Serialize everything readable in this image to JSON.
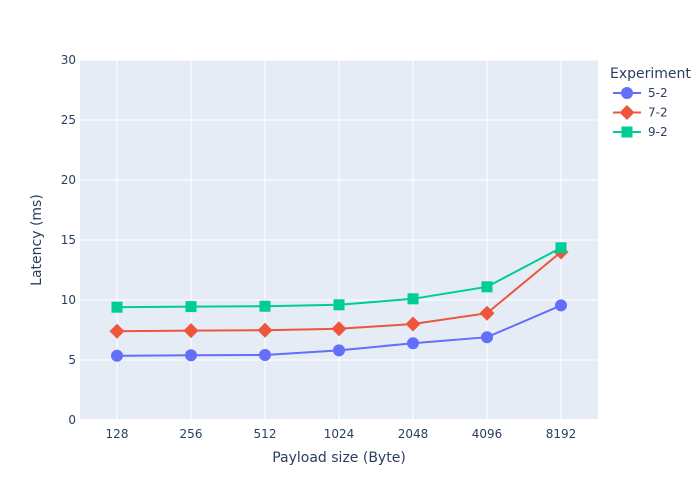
{
  "chart_data": {
    "type": "line",
    "title": "",
    "xlabel": "Payload size (Byte)",
    "ylabel": "Latency (ms)",
    "categories": [
      "128",
      "256",
      "512",
      "1024",
      "2048",
      "4096",
      "8192"
    ],
    "ylim": [
      0,
      30
    ],
    "yticks": [
      0,
      5,
      10,
      15,
      20,
      25,
      30
    ],
    "grid": true,
    "legend_title": "Experiment",
    "legend_position": "top-right",
    "series": [
      {
        "name": "5-2",
        "color": "#636efa",
        "marker": "circle",
        "values": [
          5.35,
          5.4,
          5.42,
          5.8,
          6.4,
          6.9,
          9.55
        ]
      },
      {
        "name": "7-2",
        "color": "#ef553b",
        "marker": "diamond",
        "values": [
          7.4,
          7.45,
          7.48,
          7.6,
          8.0,
          8.9,
          14.0
        ]
      },
      {
        "name": "9-2",
        "color": "#00cc96",
        "marker": "square",
        "values": [
          9.4,
          9.45,
          9.48,
          9.6,
          10.1,
          11.1,
          14.35
        ]
      }
    ]
  }
}
